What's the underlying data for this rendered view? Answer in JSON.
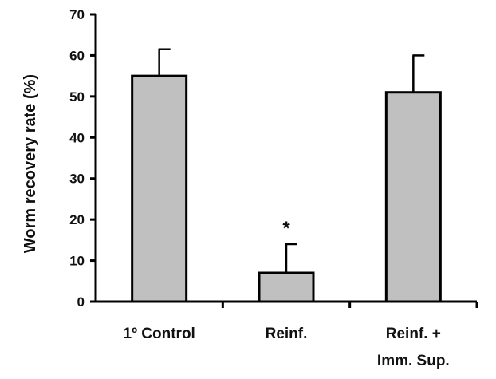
{
  "chart_data": {
    "type": "bar",
    "ylabel": "Worm recovery rate (%)",
    "xlabel": "",
    "categories": [
      [
        "1º Control"
      ],
      [
        "Reinf."
      ],
      [
        "Reinf. +",
        "Imm. Sup."
      ]
    ],
    "values": [
      55,
      7,
      51
    ],
    "error_plus": [
      6.5,
      7,
      9
    ],
    "annotations": [
      "",
      "*",
      ""
    ],
    "ylim": [
      0,
      70
    ],
    "yticks": [
      0,
      10,
      20,
      30,
      40,
      50,
      60,
      70
    ],
    "grid": false,
    "bar_color": "#c0c0c0",
    "edge_color": "#000000"
  }
}
